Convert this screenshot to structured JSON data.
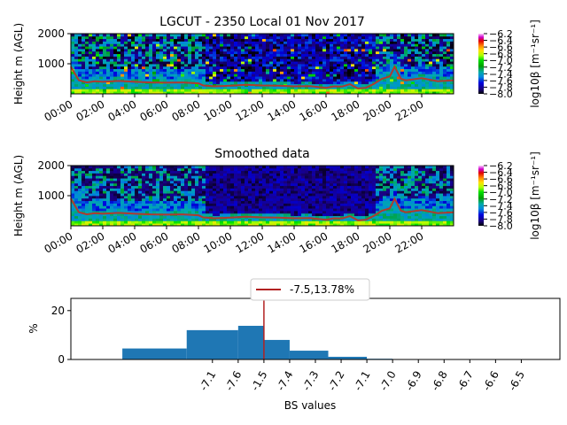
{
  "chart_data": [
    {
      "type": "heatmap",
      "title": "LGCUT - 2350 Local 01 Nov 2017",
      "ylabel": "Height m (AGL)",
      "xlabel": "",
      "x_ticks": [
        "00:00",
        "02:00",
        "04:00",
        "06:00",
        "08:00",
        "10:00",
        "12:00",
        "14:00",
        "16:00",
        "18:00",
        "20:00",
        "22:00"
      ],
      "xlim_hours": [
        0,
        24
      ],
      "y_ticks": [
        1000,
        2000
      ],
      "ylim": [
        0,
        2000
      ],
      "colorbar": {
        "label": "log10β [m⁻¹sr⁻¹]",
        "ticks": [
          -6.2,
          -6.4,
          -6.6,
          -6.8,
          -7.0,
          -7.2,
          -7.4,
          -7.6,
          -7.8,
          -8.0
        ],
        "range": [
          -8.0,
          -6.2
        ],
        "colormap": "nipy_spectral"
      },
      "overlay_line": {
        "color": "#b03a2e",
        "x_hours": [
          0,
          0.5,
          1,
          1.5,
          2,
          3,
          4,
          5,
          6,
          7,
          8,
          8.3,
          9,
          10,
          11,
          12,
          13,
          14,
          15,
          16,
          16.5,
          17,
          17.5,
          18,
          18.5,
          19,
          19.5,
          20,
          20.3,
          20.7,
          21,
          22,
          23,
          24
        ],
        "heights_m": [
          900,
          450,
          380,
          420,
          400,
          430,
          400,
          380,
          370,
          380,
          350,
          280,
          250,
          270,
          300,
          280,
          270,
          250,
          260,
          200,
          250,
          240,
          320,
          180,
          200,
          330,
          500,
          580,
          900,
          500,
          450,
          520,
          420,
          450
        ]
      }
    },
    {
      "type": "heatmap",
      "title": "Smoothed data",
      "ylabel": "Height m (AGL)",
      "xlabel": "",
      "x_ticks": [
        "00:00",
        "02:00",
        "04:00",
        "06:00",
        "08:00",
        "10:00",
        "12:00",
        "14:00",
        "16:00",
        "18:00",
        "20:00",
        "22:00"
      ],
      "xlim_hours": [
        0,
        24
      ],
      "y_ticks": [
        1000,
        2000
      ],
      "ylim": [
        0,
        2000
      ],
      "colorbar": {
        "label": "log10β [m⁻¹sr⁻¹]",
        "ticks": [
          -6.2,
          -6.4,
          -6.6,
          -6.8,
          -7.0,
          -7.2,
          -7.4,
          -7.6,
          -7.8,
          -8.0
        ],
        "range": [
          -8.0,
          -6.2
        ],
        "colormap": "nipy_spectral"
      },
      "overlay_line": {
        "color": "#b03a2e",
        "x_hours": [
          0,
          0.5,
          1,
          1.5,
          2,
          3,
          4,
          5,
          6,
          7,
          8,
          8.3,
          9,
          10,
          11,
          12,
          13,
          14,
          15,
          16,
          16.5,
          17,
          17.5,
          18,
          18.5,
          19,
          19.5,
          20,
          20.3,
          20.7,
          21,
          22,
          23,
          24
        ],
        "heights_m": [
          900,
          450,
          380,
          420,
          400,
          430,
          400,
          380,
          370,
          380,
          350,
          280,
          250,
          270,
          300,
          280,
          270,
          250,
          260,
          200,
          250,
          240,
          320,
          180,
          200,
          330,
          500,
          580,
          900,
          500,
          450,
          520,
          420,
          450
        ]
      }
    },
    {
      "type": "bar",
      "title": "",
      "xlabel": "BS values",
      "ylabel": "%",
      "x_ticks": [
        "-7.1",
        "-7.6",
        "-1.5",
        "-7.4",
        "-7.3",
        "-7.2",
        "-7.1",
        "-7.0",
        "-6.9",
        "-6.8",
        "-6.7",
        "-6.6",
        "-6.5"
      ],
      "xlim": [
        -8.25,
        -6.35
      ],
      "ylim": [
        0,
        25
      ],
      "y_ticks": [
        0,
        20
      ],
      "bar_color": "#1f77b4",
      "bins": [
        {
          "start": -8.05,
          "end": -7.8,
          "value": 4.5
        },
        {
          "start": -7.8,
          "end": -7.6,
          "value": 12.0
        },
        {
          "start": -7.6,
          "end": -7.5,
          "value": 13.78
        },
        {
          "start": -7.5,
          "end": -7.4,
          "value": 8.0
        },
        {
          "start": -7.4,
          "end": -7.25,
          "value": 3.6
        },
        {
          "start": -7.25,
          "end": -7.1,
          "value": 1.1
        },
        {
          "start": -7.1,
          "end": -7.0,
          "value": 0.3
        },
        {
          "start": -7.0,
          "end": -6.9,
          "value": 0.15
        },
        {
          "start": -6.9,
          "end": -6.6,
          "value": 0.05
        }
      ],
      "vline": {
        "x": -7.5,
        "color": "#b22222"
      },
      "legend": {
        "placement": "top-center",
        "entries": [
          "-7.5,13.78%"
        ]
      }
    }
  ]
}
